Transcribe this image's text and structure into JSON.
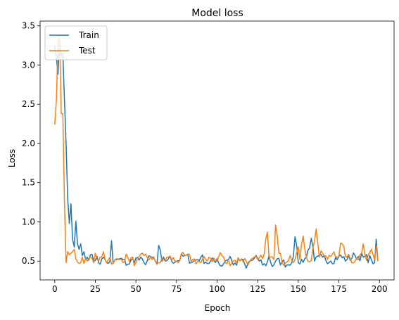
{
  "chart_data": {
    "type": "line",
    "title": "Model loss",
    "xlabel": "Epoch",
    "ylabel": "Loss",
    "xlim": [
      -9,
      209
    ],
    "ylim": [
      0.26,
      3.56
    ],
    "xticks": [
      0,
      25,
      50,
      75,
      100,
      125,
      150,
      175,
      200
    ],
    "yticks": [
      0.5,
      1.0,
      1.5,
      2.0,
      2.5,
      3.0,
      3.5
    ],
    "ytick_labels": [
      "0.5",
      "1.0",
      "1.5",
      "2.0",
      "2.5",
      "3.0",
      "3.5"
    ],
    "grid": false,
    "legend_position": "upper-left",
    "series": [
      {
        "name": "Train",
        "color": "#1f77b4",
        "key_points": [
          [
            0,
            3.25
          ],
          [
            1,
            3.1
          ],
          [
            2,
            2.88
          ],
          [
            3,
            3.3
          ],
          [
            4,
            3.12
          ],
          [
            5,
            3.15
          ],
          [
            6,
            2.55
          ],
          [
            7,
            2.0
          ],
          [
            8,
            1.3
          ],
          [
            9,
            0.98
          ],
          [
            10,
            1.23
          ],
          [
            11,
            0.78
          ],
          [
            12,
            0.68
          ],
          [
            13,
            1.01
          ],
          [
            14,
            0.72
          ],
          [
            15,
            0.65
          ],
          [
            16,
            0.72
          ],
          [
            17,
            0.57
          ],
          [
            18,
            0.62
          ],
          [
            19,
            0.52
          ],
          [
            20,
            0.55
          ],
          [
            22,
            0.58
          ],
          [
            24,
            0.5
          ],
          [
            26,
            0.56
          ],
          [
            28,
            0.46
          ],
          [
            30,
            0.55
          ],
          [
            32,
            0.48
          ],
          [
            34,
            0.5
          ],
          [
            35,
            0.76
          ],
          [
            36,
            0.47
          ],
          [
            40,
            0.53
          ],
          [
            45,
            0.46
          ],
          [
            50,
            0.54
          ],
          [
            55,
            0.48
          ],
          [
            60,
            0.55
          ],
          [
            63,
            0.46
          ],
          [
            64,
            0.7
          ],
          [
            66,
            0.5
          ],
          [
            70,
            0.53
          ],
          [
            75,
            0.5
          ],
          [
            80,
            0.57
          ],
          [
            85,
            0.49
          ],
          [
            90,
            0.55
          ],
          [
            95,
            0.47
          ],
          [
            100,
            0.53
          ],
          [
            102,
            0.44
          ],
          [
            105,
            0.5
          ],
          [
            108,
            0.56
          ],
          [
            110,
            0.45
          ],
          [
            115,
            0.52
          ],
          [
            118,
            0.41
          ],
          [
            120,
            0.5
          ],
          [
            125,
            0.53
          ],
          [
            130,
            0.44
          ],
          [
            132,
            0.57
          ],
          [
            134,
            0.43
          ],
          [
            136,
            0.5
          ],
          [
            140,
            0.49
          ],
          [
            144,
            0.45
          ],
          [
            147,
            0.56
          ],
          [
            148,
            0.81
          ],
          [
            150,
            0.48
          ],
          [
            155,
            0.55
          ],
          [
            158,
            0.79
          ],
          [
            160,
            0.5
          ],
          [
            165,
            0.55
          ],
          [
            170,
            0.5
          ],
          [
            175,
            0.56
          ],
          [
            180,
            0.52
          ],
          [
            185,
            0.57
          ],
          [
            190,
            0.55
          ],
          [
            195,
            0.52
          ],
          [
            197,
            0.48
          ],
          [
            198,
            0.78
          ],
          [
            199,
            0.5
          ]
        ]
      },
      {
        "name": "Test",
        "color": "#ff7f0e",
        "key_points": [
          [
            0,
            2.24
          ],
          [
            1,
            2.55
          ],
          [
            2,
            3.25
          ],
          [
            3,
            3.38
          ],
          [
            4,
            2.38
          ],
          [
            5,
            2.38
          ],
          [
            6,
            1.25
          ],
          [
            7,
            0.48
          ],
          [
            8,
            0.62
          ],
          [
            9,
            0.58
          ],
          [
            10,
            0.6
          ],
          [
            11,
            0.62
          ],
          [
            12,
            0.65
          ],
          [
            13,
            0.53
          ],
          [
            14,
            0.49
          ],
          [
            15,
            0.47
          ],
          [
            16,
            0.48
          ],
          [
            17,
            0.55
          ],
          [
            18,
            0.47
          ],
          [
            20,
            0.5
          ],
          [
            22,
            0.55
          ],
          [
            24,
            0.48
          ],
          [
            25,
            0.6
          ],
          [
            27,
            0.5
          ],
          [
            28,
            0.55
          ],
          [
            30,
            0.62
          ],
          [
            32,
            0.48
          ],
          [
            34,
            0.55
          ],
          [
            36,
            0.47
          ],
          [
            40,
            0.52
          ],
          [
            45,
            0.55
          ],
          [
            50,
            0.48
          ],
          [
            55,
            0.57
          ],
          [
            60,
            0.52
          ],
          [
            65,
            0.48
          ],
          [
            70,
            0.55
          ],
          [
            75,
            0.5
          ],
          [
            80,
            0.57
          ],
          [
            85,
            0.52
          ],
          [
            90,
            0.48
          ],
          [
            95,
            0.55
          ],
          [
            100,
            0.5
          ],
          [
            102,
            0.61
          ],
          [
            105,
            0.48
          ],
          [
            110,
            0.5
          ],
          [
            115,
            0.53
          ],
          [
            120,
            0.49
          ],
          [
            125,
            0.52
          ],
          [
            128,
            0.53
          ],
          [
            131,
            0.87
          ],
          [
            132,
            0.55
          ],
          [
            135,
            0.52
          ],
          [
            136,
            0.96
          ],
          [
            138,
            0.6
          ],
          [
            139,
            0.6
          ],
          [
            140,
            0.48
          ],
          [
            145,
            0.57
          ],
          [
            148,
            0.52
          ],
          [
            150,
            0.68
          ],
          [
            151,
            0.52
          ],
          [
            153,
            0.82
          ],
          [
            155,
            0.55
          ],
          [
            158,
            0.51
          ],
          [
            161,
            0.91
          ],
          [
            163,
            0.55
          ],
          [
            165,
            0.6
          ],
          [
            168,
            0.52
          ],
          [
            172,
            0.62
          ],
          [
            175,
            0.56
          ],
          [
            176,
            0.73
          ],
          [
            180,
            0.55
          ],
          [
            185,
            0.5
          ],
          [
            188,
            0.58
          ],
          [
            190,
            0.72
          ],
          [
            192,
            0.51
          ],
          [
            195,
            0.65
          ],
          [
            197,
            0.52
          ],
          [
            198,
            0.69
          ],
          [
            199,
            0.5
          ]
        ]
      }
    ]
  }
}
